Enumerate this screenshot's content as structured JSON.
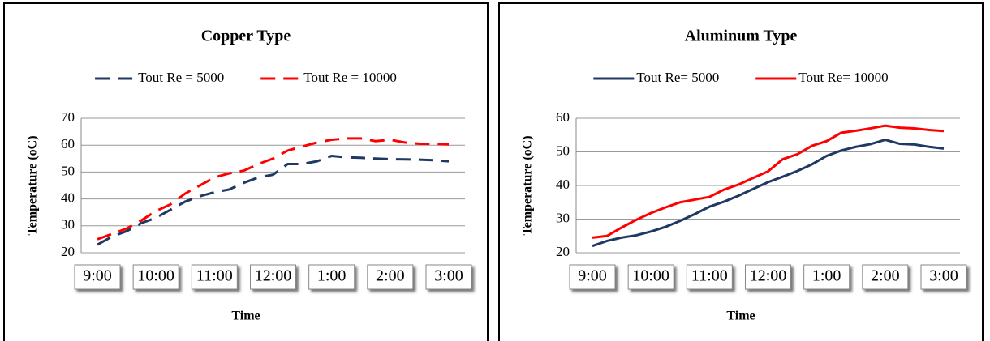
{
  "chart_data": [
    {
      "type": "line",
      "title": "Copper Type",
      "xlabel": "Time",
      "ylabel": "Temperature (oC)",
      "dashed": true,
      "grid": true,
      "categories": [
        "9:00",
        null,
        null,
        null,
        "10:00",
        null,
        null,
        null,
        "11:00",
        null,
        null,
        null,
        "12:00",
        null,
        null,
        null,
        "1:00",
        null,
        null,
        null,
        "2:00",
        null,
        null,
        null,
        "3:00"
      ],
      "series": [
        {
          "name": "Tout Re = 5000",
          "color": "#1f3864",
          "values": [
            23,
            26,
            28,
            31,
            33,
            36,
            39,
            41,
            42.5,
            43.5,
            46,
            48,
            49,
            53,
            53,
            54,
            56,
            55.5,
            55.3,
            55,
            54.8,
            54.7,
            54.6,
            54.4,
            54
          ]
        },
        {
          "name": "Tout Re = 10000",
          "color": "#ff0000",
          "values": [
            25,
            27,
            29,
            32,
            35.5,
            38,
            42,
            45,
            48,
            49.5,
            50.5,
            53,
            55,
            58,
            59.5,
            61,
            62,
            62.5,
            62.5,
            61.5,
            62,
            61,
            60.5,
            60.5,
            60.3
          ]
        }
      ],
      "ylim": [
        20,
        70
      ],
      "yticks": [
        20,
        30,
        40,
        50,
        60,
        70
      ]
    },
    {
      "type": "line",
      "title": "Aluminum Type",
      "xlabel": "Time",
      "ylabel": "Temperature (oC)",
      "dashed": false,
      "grid": true,
      "categories": [
        "9:00",
        null,
        null,
        null,
        "10:00",
        null,
        null,
        null,
        "11:00",
        null,
        null,
        null,
        "12:00",
        null,
        null,
        null,
        "1:00",
        null,
        null,
        null,
        "2:00",
        null,
        null,
        null,
        "3:00"
      ],
      "series": [
        {
          "name": "Tout Re= 5000",
          "color": "#1f3864",
          "values": [
            22,
            23.5,
            24.5,
            25.2,
            26.3,
            27.7,
            29.5,
            31.5,
            33.7,
            35.2,
            37,
            39,
            41,
            42.6,
            44.3,
            46.3,
            48.8,
            50.4,
            51.5,
            52.3,
            53.6,
            52.4,
            52.2,
            51.5,
            51
          ]
        },
        {
          "name": "Tout Re= 10000",
          "color": "#ff0000",
          "values": [
            24.5,
            25,
            27.5,
            29.8,
            31.8,
            33.5,
            35,
            35.8,
            36.6,
            38.8,
            40.3,
            42.3,
            44.2,
            47.8,
            49.3,
            51.8,
            53.2,
            55.7,
            56.3,
            57,
            57.8,
            57.2,
            57,
            56.5,
            56.2
          ]
        }
      ],
      "ylim": [
        20,
        60
      ],
      "yticks": [
        20,
        30,
        40,
        50,
        60
      ]
    }
  ]
}
